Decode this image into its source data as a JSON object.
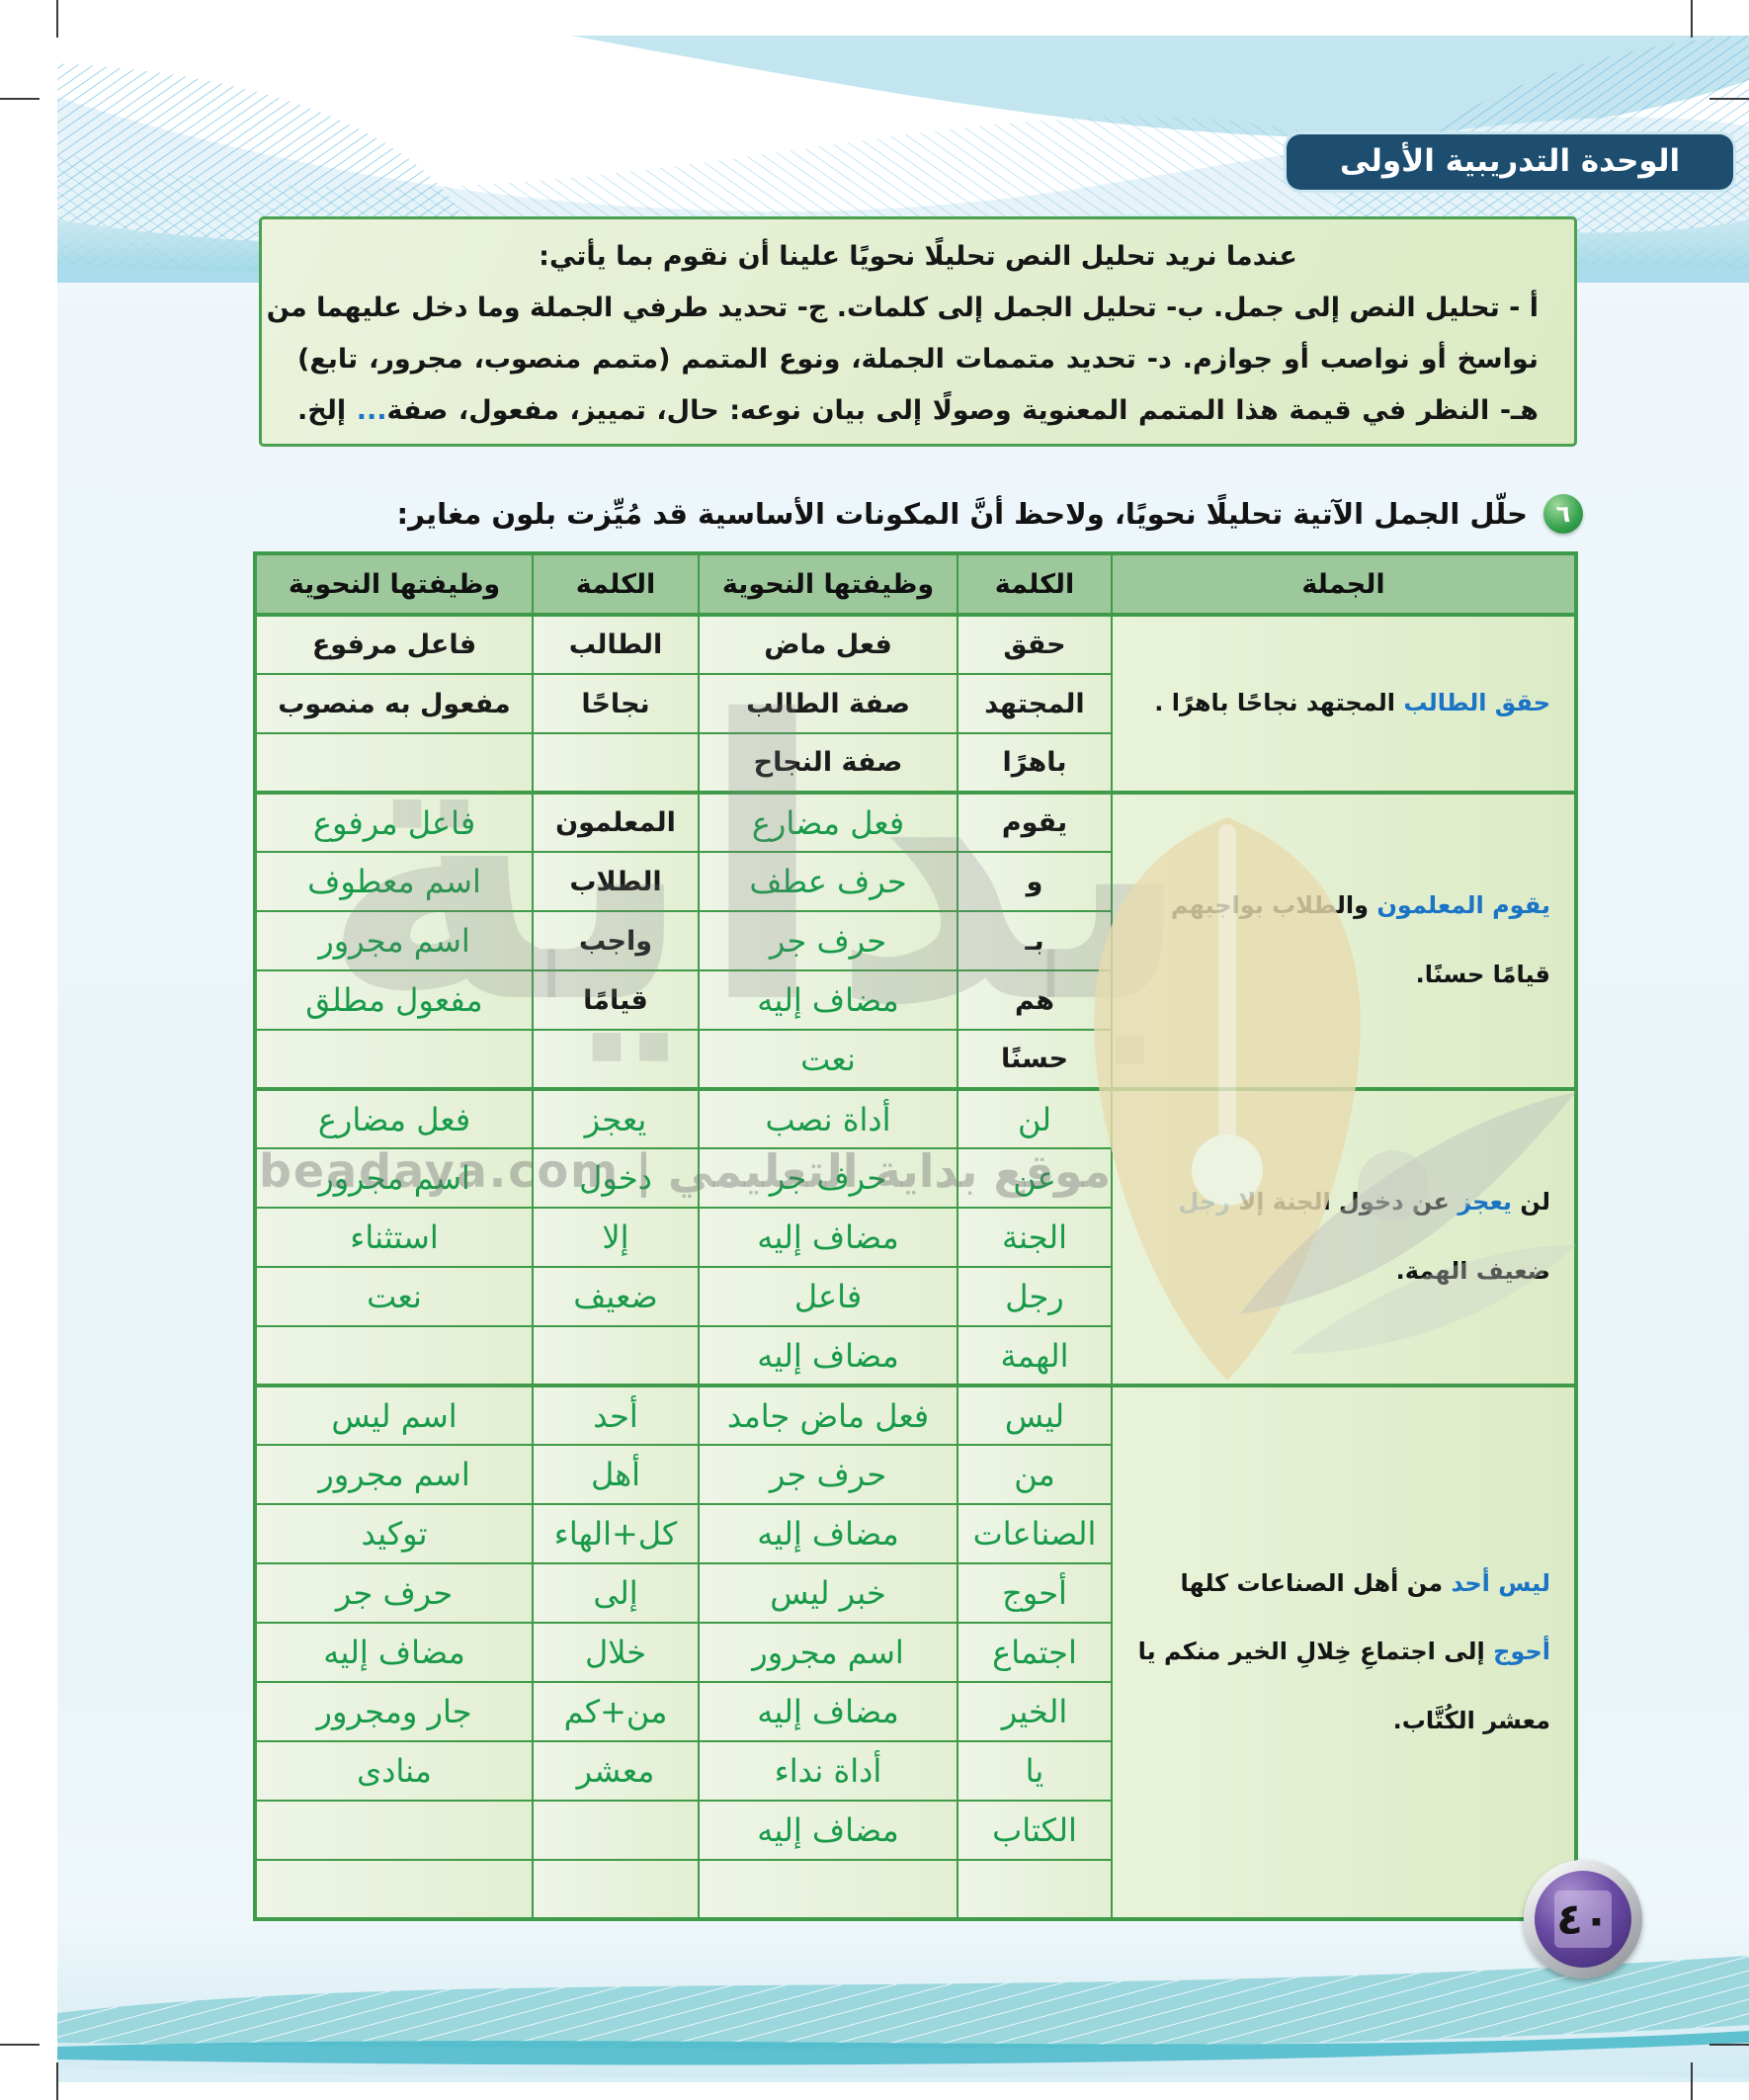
{
  "banner": {
    "label": "الوحدة التدريبية الأولى"
  },
  "intro_box": {
    "lines": [
      [
        {
          "t": "عندما نريد تحليل النص تحليلًا نحويًا علينا أن نقوم بما يأتي:",
          "c": "k"
        }
      ],
      [
        {
          "t": "أ - تحليل النص إلى جمل. ب- تحليل الجمل إلى كلمات. ج- تحديد طرفي الجملة وما دخل عليهما من",
          "c": "k"
        }
      ],
      [
        {
          "t": "نواسخ أو نواصب أو جوازم. د- تحديد متممات الجملة، ونوع المتمم (متمم منصوب، مجرور، تابع)",
          "c": "k"
        }
      ],
      [
        {
          "t": "هـ- النظر في قيمة هذا المتمم المعنوية وصولًا إلى بيان نوعه: حال، تمييز، مفعول، صفة",
          "c": "k"
        },
        {
          "t": "...",
          "c": "b"
        },
        {
          "t": " إلخ.",
          "c": "k"
        }
      ]
    ]
  },
  "exercise": {
    "number": "٦",
    "prompt": "حلّل الجمل الآتية تحليلًا نحويًا، ولاحظ أنَّ المكونات الأساسية قد مُيِّزت بلون مغاير:"
  },
  "table": {
    "headers": [
      "الجملة",
      "الكلمة",
      "وظيفتها النحوية",
      "الكلمة",
      "وظيفتها النحوية"
    ],
    "groups": [
      {
        "word_style": "given",
        "func_style": "given",
        "sentence": [
          {
            "t": "حقق الطالب",
            "c": "b"
          },
          {
            "t": " المجتهد نجاحًا باهرًا .",
            "c": "k"
          }
        ],
        "rows": [
          [
            "حقق",
            "فعل ماض",
            "الطالب",
            "فاعل مرفوع"
          ],
          [
            "المجتهد",
            "صفة الطالب",
            "نجاحًا",
            "مفعول به منصوب"
          ],
          [
            "باهرًا",
            "صفة النجاح",
            "",
            ""
          ]
        ]
      },
      {
        "word_style": "given",
        "func_style": "answer",
        "sentence": [
          {
            "t": "يقوم المعلمون",
            "c": "b"
          },
          {
            "t": " والطلاب بواجبهم قيامًا حسنًا.",
            "c": "k"
          }
        ],
        "rows": [
          [
            "يقوم",
            "فعل مضارع",
            "المعلمون",
            "فاعل مرفوع"
          ],
          [
            "و",
            "حرف عطف",
            "الطلاب",
            "اسم معطوف"
          ],
          [
            "بـ",
            "حرف جر",
            "واجب",
            "اسم مجرور"
          ],
          [
            "هم",
            "مضاف إليه",
            "قيامًا",
            "مفعول مطلق"
          ],
          [
            "حسنًا",
            "نعت",
            "",
            ""
          ]
        ]
      },
      {
        "word_style": "answer",
        "func_style": "answer",
        "sentence": [
          {
            "t": "لن ",
            "c": "k"
          },
          {
            "t": "يعجز",
            "c": "b"
          },
          {
            "t": " عن دخول الجنة إلا ",
            "c": "k"
          },
          {
            "t": "رجل",
            "c": "b"
          },
          {
            "t": " ضعيف الهمة.",
            "c": "k"
          }
        ],
        "rows": [
          [
            "لن",
            "أداة نصب",
            "يعجز",
            "فعل مضارع"
          ],
          [
            "عن",
            "حرف جر",
            "دخول",
            "اسم مجرور"
          ],
          [
            "الجنة",
            "مضاف إليه",
            "إلا",
            "استثناء"
          ],
          [
            "رجل",
            "فاعل",
            "ضعيف",
            "نعت"
          ],
          [
            "الهمة",
            "مضاف إليه",
            "",
            ""
          ]
        ]
      },
      {
        "word_style": "answer",
        "func_style": "answer",
        "sentence": [
          {
            "t": "ليس أحد",
            "c": "b"
          },
          {
            "t": " من أهل الصناعات كلها ",
            "c": "k"
          },
          {
            "t": "أحوج",
            "c": "b"
          },
          {
            "t": " إلى اجتماعِ خِلالِ الخير منكم يا معشر الكُتَّاب.",
            "c": "k"
          }
        ],
        "rows": [
          [
            "ليس",
            "فعل ماض جامد",
            "أحد",
            "اسم ليس"
          ],
          [
            "من",
            "حرف جر",
            "أهل",
            "اسم مجرور"
          ],
          [
            "الصناعات",
            "مضاف إليه",
            "كل+الهاء",
            "توكيد"
          ],
          [
            "أحوج",
            "خبر ليس",
            "إلى",
            "حرف جر"
          ],
          [
            "اجتماع",
            "اسم مجرور",
            "خلال",
            "مضاف إليه"
          ],
          [
            "الخير",
            "مضاف إليه",
            "من+كم",
            "جار ومجرور"
          ],
          [
            "يا",
            "أداة نداء",
            "معشر",
            "منادى"
          ],
          [
            "الكتاب",
            "مضاف إليه",
            "",
            ""
          ],
          [
            "",
            "",
            "",
            ""
          ]
        ]
      }
    ]
  },
  "watermark": {
    "big_text": "بداية",
    "site_text": "موقع بداية التعليمي | beadaya.com"
  },
  "page": {
    "number": "٤٠"
  },
  "colors": {
    "table_border_green": "#3f9b49",
    "header_green": "#9cc89b",
    "answer_green": "#189a4a",
    "highlight_blue": "#1b74c5",
    "banner_blue": "#1d4e70",
    "badge_purple": "#5b3f96"
  }
}
